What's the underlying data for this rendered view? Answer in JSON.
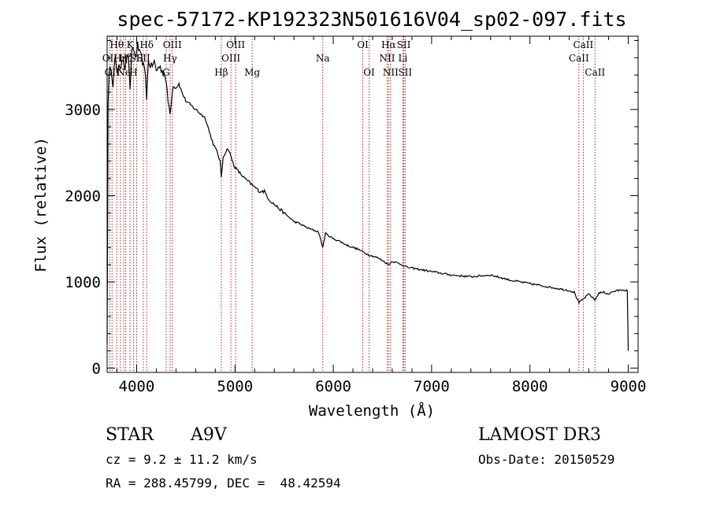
{
  "chart_data": {
    "type": "line",
    "title": "spec-57172-KP192323N501616V04_sp02-097.fits",
    "xlabel": "Wavelength (Å)",
    "ylabel": "Flux (relative)",
    "xlim": [
      3700,
      9100
    ],
    "ylim": [
      -50,
      3850
    ],
    "xticks": [
      4000,
      5000,
      6000,
      7000,
      8000,
      9000
    ],
    "yticks": [
      0,
      1000,
      2000,
      3000
    ],
    "series": [
      {
        "name": "flux",
        "x": [
          3700,
          3710,
          3720,
          3740,
          3760,
          3780,
          3800,
          3820,
          3840,
          3860,
          3880,
          3900,
          3920,
          3933,
          3950,
          3970,
          3990,
          4010,
          4030,
          4050,
          4070,
          4090,
          4101,
          4120,
          4150,
          4180,
          4200,
          4230,
          4260,
          4290,
          4320,
          4340,
          4360,
          4380,
          4400,
          4430,
          4460,
          4500,
          4550,
          4600,
          4650,
          4700,
          4750,
          4780,
          4820,
          4850,
          4861,
          4880,
          4900,
          4930,
          4960,
          4990,
          5020,
          5060,
          5100,
          5150,
          5200,
          5250,
          5300,
          5350,
          5400,
          5450,
          5500,
          5550,
          5600,
          5650,
          5700,
          5750,
          5800,
          5850,
          5893,
          5920,
          5950,
          6000,
          6050,
          6100,
          6150,
          6200,
          6250,
          6300,
          6350,
          6400,
          6450,
          6500,
          6563,
          6600,
          6650,
          6700,
          6750,
          6800,
          6850,
          6900,
          6950,
          7000,
          7100,
          7200,
          7300,
          7400,
          7500,
          7600,
          7700,
          7800,
          7900,
          8000,
          8100,
          8200,
          8300,
          8400,
          8450,
          8498,
          8542,
          8600,
          8662,
          8700,
          8750,
          8800,
          8850,
          8900,
          8950,
          8990,
          9000
        ],
        "values": [
          300,
          3100,
          3400,
          3500,
          3300,
          3600,
          3400,
          3550,
          3450,
          3600,
          3500,
          3650,
          3550,
          3200,
          3650,
          3700,
          3600,
          3750,
          3650,
          3600,
          3500,
          3400,
          3150,
          3550,
          3500,
          3550,
          3450,
          3500,
          3450,
          3400,
          3100,
          2950,
          3200,
          3300,
          3250,
          3300,
          3200,
          3100,
          3050,
          3000,
          2950,
          2900,
          2700,
          2600,
          2500,
          2400,
          2200,
          2450,
          2500,
          2550,
          2450,
          2350,
          2300,
          2250,
          2200,
          2150,
          2100,
          2050,
          2050,
          1950,
          1900,
          1850,
          1800,
          1750,
          1700,
          1680,
          1650,
          1620,
          1600,
          1580,
          1400,
          1560,
          1540,
          1500,
          1480,
          1450,
          1420,
          1400,
          1380,
          1350,
          1320,
          1300,
          1280,
          1250,
          1200,
          1240,
          1220,
          1200,
          1170,
          1160,
          1150,
          1140,
          1130,
          1120,
          1100,
          1080,
          1070,
          1060,
          1070,
          1080,
          1050,
          1020,
          1000,
          980,
          960,
          940,
          920,
          900,
          880,
          760,
          800,
          860,
          790,
          870,
          880,
          860,
          890,
          900,
          910,
          900,
          200
        ]
      }
    ],
    "lines": [
      {
        "wavelength": 3727,
        "label": "OII",
        "row": 1
      },
      {
        "wavelength": 3750,
        "label": "OII",
        "row": 2
      },
      {
        "wavelength": 3798,
        "label": "Hθ",
        "row": 0
      },
      {
        "wavelength": 3835,
        "label": "Hη",
        "row": 1
      },
      {
        "wavelength": 3869,
        "label": "Ne",
        "row": 2
      },
      {
        "wavelength": 3889,
        "label": "Hζ",
        "row": 1
      },
      {
        "wavelength": 3933,
        "label": "K",
        "row": 0
      },
      {
        "wavelength": 3968,
        "label": "H",
        "row": 2
      },
      {
        "wavelength": 4000,
        "label": "SII",
        "row": 1
      },
      {
        "wavelength": 4068,
        "label": "SII",
        "row": 1
      },
      {
        "wavelength": 4102,
        "label": "Hδ",
        "row": 0
      },
      {
        "wavelength": 4300,
        "label": "G",
        "row": 2
      },
      {
        "wavelength": 4340,
        "label": "Hγ",
        "row": 1
      },
      {
        "wavelength": 4363,
        "label": "OIII",
        "row": 0
      },
      {
        "wavelength": 4861,
        "label": "Hβ",
        "row": 2
      },
      {
        "wavelength": 4959,
        "label": "OIII",
        "row": 1
      },
      {
        "wavelength": 5007,
        "label": "OIII",
        "row": 0
      },
      {
        "wavelength": 5175,
        "label": "Mg",
        "row": 2
      },
      {
        "wavelength": 5893,
        "label": "Na",
        "row": 1
      },
      {
        "wavelength": 6300,
        "label": "OI",
        "row": 0
      },
      {
        "wavelength": 6364,
        "label": "OI",
        "row": 2
      },
      {
        "wavelength": 6548,
        "label": "NII",
        "row": 1
      },
      {
        "wavelength": 6563,
        "label": "Hα",
        "row": 0
      },
      {
        "wavelength": 6583,
        "label": "NII",
        "row": 2
      },
      {
        "wavelength": 6708,
        "label": "Li",
        "row": 1
      },
      {
        "wavelength": 6717,
        "label": "SII",
        "row": 0
      },
      {
        "wavelength": 6731,
        "label": "SII",
        "row": 2
      },
      {
        "wavelength": 8498,
        "label": "CaII",
        "row": 1
      },
      {
        "wavelength": 8542,
        "label": "CaII",
        "row": 0
      },
      {
        "wavelength": 8662,
        "label": "CaII",
        "row": 2
      }
    ]
  },
  "info": {
    "class": "STAR",
    "subclass": "A9V",
    "survey": "LAMOST DR3",
    "cz": "cz = 9.2 ± 11.2 km/s",
    "obs_date": "Obs-Date: 20150529",
    "coords": "RA = 288.45799, DEC =  48.42594"
  },
  "colors": {
    "spectrum": "#000000",
    "line_marker": "#b22222",
    "background": "#ffffff"
  }
}
